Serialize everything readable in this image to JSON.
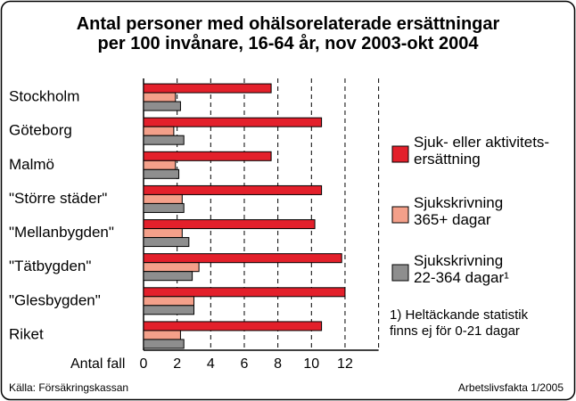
{
  "chart_data": {
    "type": "bar",
    "orientation": "horizontal",
    "title": "Antal personer med ohälsorelaterade ersättningar\nper 100 invånare, 16-64 år, nov 2003-okt 2004",
    "categories": [
      "Stockholm",
      "Göteborg",
      "Malmö",
      "\"Större städer\"",
      "\"Mellanbygden\"",
      "\"Tätbygden\"",
      "\"Glesbygden\"",
      "Riket"
    ],
    "series": [
      {
        "name": "Sjuk- eller aktivitets-\nersättning",
        "color": "#e3202b",
        "values": [
          7.6,
          10.6,
          7.6,
          10.6,
          10.2,
          11.8,
          12.0,
          10.6
        ]
      },
      {
        "name": "Sjukskrivning\n365+ dagar",
        "color": "#f4a08a",
        "values": [
          1.9,
          1.8,
          1.9,
          2.3,
          2.3,
          3.3,
          3.0,
          2.2
        ]
      },
      {
        "name": "Sjukskrivning\n22-364 dagar¹",
        "color": "#8e8e8e",
        "values": [
          2.2,
          2.4,
          2.1,
          2.4,
          2.7,
          2.9,
          3.0,
          2.4
        ]
      }
    ],
    "xlabel": "Antal fall",
    "xlim": [
      0,
      14
    ],
    "xticks": [
      0,
      2,
      4,
      6,
      8,
      10,
      12
    ],
    "grid": true,
    "footnote": "1) Heltäckande statistik\nfinns ej för 0-21 dagar",
    "source": "Källa: Försäkringskassan",
    "credit": "Arbetslivsfakta 1/2005"
  }
}
